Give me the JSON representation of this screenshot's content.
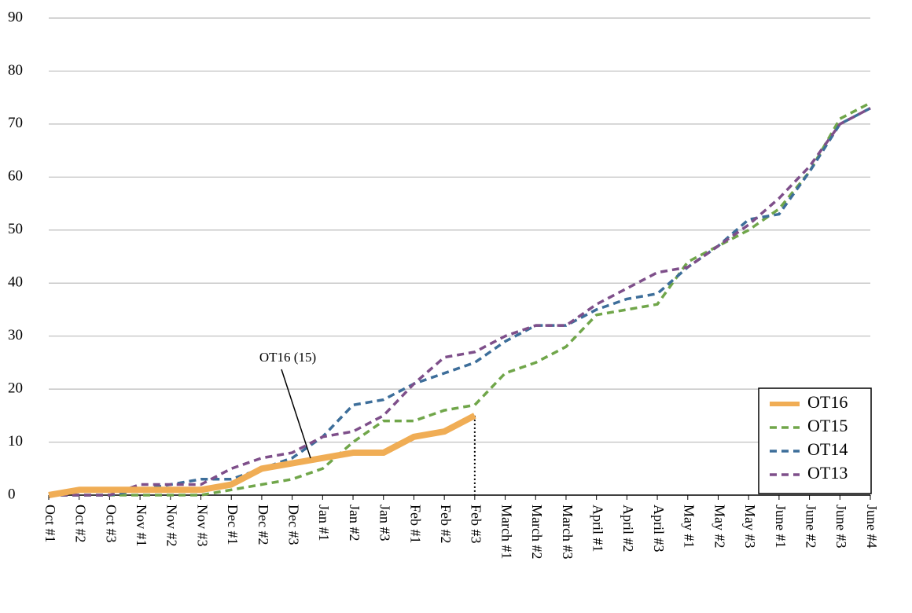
{
  "chart_data": {
    "type": "line",
    "categories": [
      "Oct #1",
      "Oct #2",
      "Oct #3",
      "Nov #1",
      "Nov #2",
      "Nov #3",
      "Dec #1",
      "Dec #2",
      "Dec #3",
      "Jan #1",
      "Jan #2",
      "Jan #3",
      "Feb #1",
      "Feb #2",
      "Feb #3",
      "March #1",
      "March #2",
      "March #3",
      "April #1",
      "April #2",
      "April #3",
      "May #1",
      "May #2",
      "May #3",
      "June #1",
      "June #2",
      "June #3",
      "June #4"
    ],
    "series": [
      {
        "name": "OT16",
        "color": "#f0ad55",
        "style": "solid",
        "values": [
          0,
          1,
          1,
          1,
          1,
          1,
          2,
          5,
          6,
          7,
          8,
          8,
          11,
          12,
          15,
          null,
          null,
          null,
          null,
          null,
          null,
          null,
          null,
          null,
          null,
          null,
          null,
          null
        ]
      },
      {
        "name": "OT15",
        "color": "#70a64a",
        "style": "dashed",
        "values": [
          0,
          0,
          0,
          0,
          0,
          0,
          1,
          2,
          3,
          5,
          10,
          14,
          14,
          16,
          17,
          23,
          25,
          28,
          34,
          35,
          36,
          44,
          47,
          50,
          54,
          61,
          71,
          74
        ]
      },
      {
        "name": "OT14",
        "color": "#3d6e9a",
        "style": "dashed",
        "values": [
          0,
          0,
          0,
          1,
          2,
          3,
          3,
          5,
          7,
          11,
          17,
          18,
          21,
          23,
          25,
          29,
          32,
          32,
          35,
          37,
          38,
          43,
          47,
          52,
          53,
          61,
          70,
          73
        ]
      },
      {
        "name": "OT13",
        "color": "#7e4f8a",
        "style": "dashed",
        "values": [
          0,
          0,
          0,
          2,
          2,
          2,
          5,
          7,
          8,
          11,
          12,
          15,
          21,
          26,
          27,
          30,
          32,
          32,
          36,
          39,
          42,
          43,
          47,
          51,
          56,
          62,
          70,
          73
        ]
      }
    ],
    "ylim": [
      0,
      90
    ],
    "yticks": [
      0,
      10,
      20,
      30,
      40,
      50,
      60,
      70,
      80,
      90
    ],
    "grid": true,
    "legend": "lower right",
    "annotations": [
      {
        "text": "OT16 (15)"
      }
    ]
  }
}
